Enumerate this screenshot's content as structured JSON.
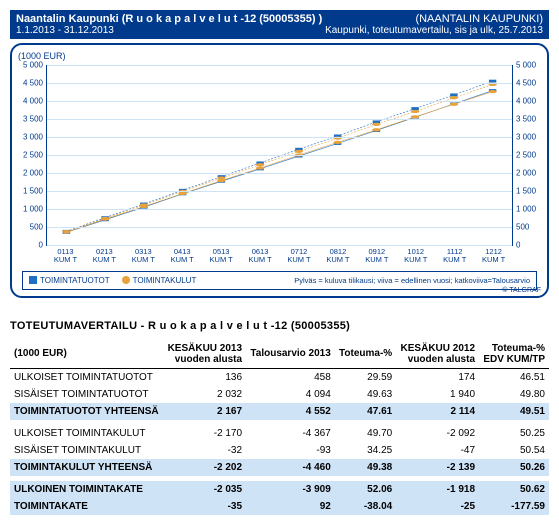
{
  "header": {
    "title_left": "Naantalin Kaupunki (R u o k a  p a l v e l u t  -12 (50005355) )",
    "title_right": "(NAANTALIN KAUPUNKI)",
    "sub_left": "1.1.2013 - 31.12.2013",
    "sub_right": "Kaupunki, toteutumavertailu, sis ja ulk, 25.7.2013"
  },
  "chart": {
    "y_label": "(1000 EUR)",
    "ymax": 5000,
    "yticks": [
      0,
      500,
      1000,
      1500,
      2000,
      2500,
      3000,
      3500,
      4000,
      4500,
      5000
    ],
    "ytick_labels": [
      "0",
      "500",
      "1 000",
      "1 500",
      "2 000",
      "2 500",
      "3 000",
      "3 500",
      "4 000",
      "4 500",
      "5 000"
    ],
    "categories": [
      "0113",
      "0213",
      "0313",
      "0413",
      "0513",
      "0613",
      "0712",
      "0812",
      "0912",
      "1012",
      "1112",
      "1212"
    ],
    "x_sub": "KUM T",
    "bars_blue": [
      136,
      540,
      980,
      1450,
      1820,
      2167,
      null,
      null,
      null,
      null,
      null,
      null
    ],
    "bars_orange": [
      380,
      740,
      1100,
      1480,
      1850,
      2202,
      null,
      null,
      null,
      null,
      null,
      null
    ],
    "line_prev_sq": [
      350,
      700,
      1050,
      1420,
      1770,
      2114,
      2470,
      2820,
      3180,
      3550,
      3920,
      4290
    ],
    "line_prev_ci": [
      360,
      720,
      1070,
      1430,
      1790,
      2139,
      2500,
      2850,
      3200,
      3560,
      3910,
      4260
    ],
    "dash_sq": [
      380,
      760,
      1140,
      1520,
      1900,
      2280,
      2660,
      3030,
      3420,
      3790,
      4170,
      4552
    ],
    "dash_ci": [
      370,
      740,
      1110,
      1490,
      1860,
      2230,
      2600,
      2970,
      3350,
      3710,
      4090,
      4460
    ],
    "colors": {
      "blue": "#1f6fc4",
      "orange": "#e8a23b",
      "grid": "#cfe3f7",
      "frame": "#003a8c"
    },
    "legend": {
      "sq": "TOIMINTATUOTOT",
      "ci": "TOIMINTAKULUT",
      "note": "Pylväs = kuluva tilikausi; viiva = edellinen vuosi; katkoviiva=Talousarvio"
    },
    "copyright": "© TALGRAF"
  },
  "section_title": "TOTEUTUMAVERTAILU - R u o k a  p a l v e l u t  -12 (50005355)",
  "table": {
    "unit": "(1000 EUR)",
    "cols": [
      "KESÄKUU 2013\nvuoden alusta",
      "Talousarvio 2013",
      "Toteuma-%",
      "KESÄKUU 2012\nvuoden alusta",
      "Toteuma-%\nEDV KUM/TP"
    ],
    "rows": [
      {
        "l": "ULKOISET TOIMINTATUOTOT",
        "v": [
          "136",
          "458",
          "29.59",
          "174",
          "46.51"
        ]
      },
      {
        "l": "SISÄISET TOIMINTATUOTOT",
        "v": [
          "2 032",
          "4 094",
          "49.63",
          "1 940",
          "49.80"
        ]
      },
      {
        "l": "TOIMINTATUOTOT YHTEENSÄ",
        "v": [
          "2 167",
          "4 552",
          "47.61",
          "2 114",
          "49.51"
        ],
        "hl": true
      },
      {
        "spacer": true
      },
      {
        "l": "ULKOISET TOIMINTAKULUT",
        "v": [
          "-2 170",
          "-4 367",
          "49.70",
          "-2 092",
          "50.25"
        ]
      },
      {
        "l": "SISÄISET TOIMINTAKULUT",
        "v": [
          "-32",
          "-93",
          "34.25",
          "-47",
          "50.54"
        ]
      },
      {
        "l": "TOIMINTAKULUT YHTEENSÄ",
        "v": [
          "-2 202",
          "-4 460",
          "49.38",
          "-2 139",
          "50.26"
        ],
        "hl": true
      },
      {
        "spacer": true
      },
      {
        "l": "ULKOINEN TOIMINTAKATE",
        "v": [
          "-2 035",
          "-3 909",
          "52.06",
          "-1 918",
          "50.62"
        ],
        "hl": true
      },
      {
        "l": "TOIMINTAKATE",
        "v": [
          "-35",
          "92",
          "-38.04",
          "-25",
          "-177.59"
        ],
        "hl": true
      }
    ]
  }
}
